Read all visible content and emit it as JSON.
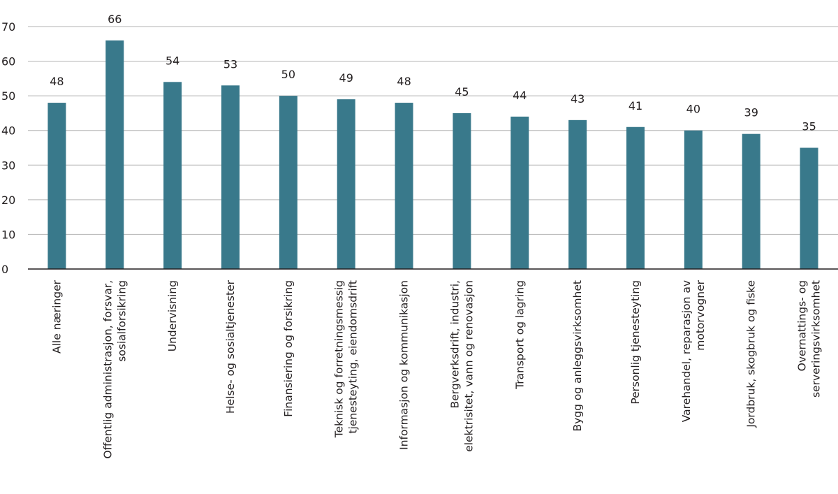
{
  "chart_data": {
    "type": "bar",
    "title": "",
    "xlabel": "",
    "ylabel": "",
    "ylim": [
      0,
      70
    ],
    "yticks": [
      0,
      10,
      20,
      30,
      40,
      50,
      60,
      70
    ],
    "grid": true,
    "legend": "none",
    "categories": [
      [
        "Alle næringer"
      ],
      [
        "Offentlig administrasjon, forsvar,",
        "sosialforsikring"
      ],
      [
        "Undervisning"
      ],
      [
        "Helse- og sosialtjenester"
      ],
      [
        "Finansiering og forsikring"
      ],
      [
        "Teknisk og forretningsmessig",
        "tjenesteyting, eiendomsdrift"
      ],
      [
        "Informasjon og kommunikasjon"
      ],
      [
        "Bergverksdrift, industri,",
        "elektrisitet, vann og renovasjon"
      ],
      [
        "Transport og lagring"
      ],
      [
        "Bygg og anleggsvirksomhet"
      ],
      [
        "Personlig tjenesteyting"
      ],
      [
        "Varehandel, reparasjon av",
        "motorvogner"
      ],
      [
        "Jordbruk, skogbruk og fiske"
      ],
      [
        "Overnattings- og",
        "serveringsvirksomhet"
      ]
    ],
    "values": [
      48,
      66,
      54,
      53,
      50,
      49,
      48,
      45,
      44,
      43,
      41,
      40,
      39,
      35
    ],
    "data_labels": [
      "48",
      "66",
      "54",
      "53",
      "50",
      "49",
      "48",
      "45",
      "44",
      "43",
      "41",
      "40",
      "39",
      "35"
    ],
    "colors": {
      "bar": "#39798b",
      "grid": "#b3b3b3",
      "axis": "#231f20"
    }
  }
}
